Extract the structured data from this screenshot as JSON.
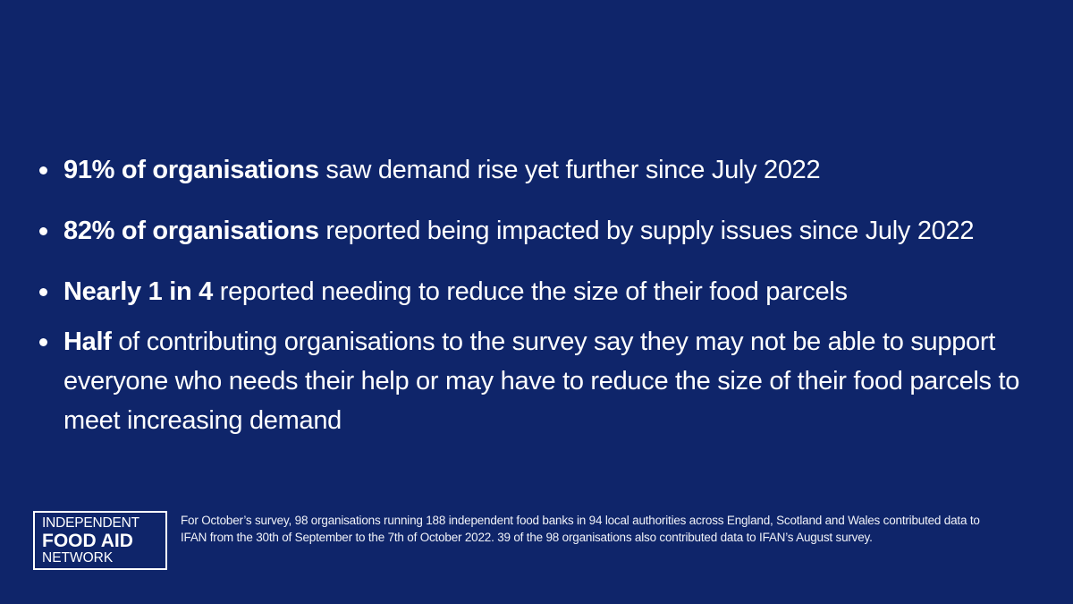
{
  "background_color": "#0f256a",
  "text_color": "#ffffff",
  "bullets": [
    {
      "bold": "91% of organisations",
      "text": " saw demand rise yet further since July 2022"
    },
    {
      "bold": "82% of organisations",
      "text": " reported being impacted by supply issues since July 2022"
    },
    {
      "bold": "Nearly 1 in 4",
      "text": " reported needing to reduce the size of their food parcels"
    },
    {
      "bold": "Half",
      "text": " of contributing organisations to the survey say they may not be able to support everyone who needs their help or may have to reduce the size of their food parcels to meet increasing demand"
    }
  ],
  "logo": {
    "line1": "INDEPENDENT",
    "line2": "FOOD AID",
    "line3": "NETWORK"
  },
  "footnote": "For October’s survey, 98 organisations running 188 independent food banks in 94 local authorities across England, Scotland and Wales contributed data to IFAN from the 30th of September to the 7th of October 2022. 39 of the 98 organisations also contributed data to IFAN’s August survey."
}
